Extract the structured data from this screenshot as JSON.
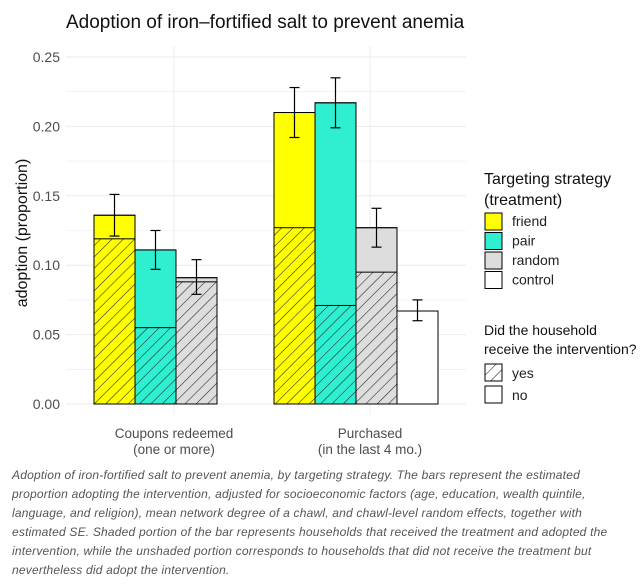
{
  "chart_data": {
    "type": "bar",
    "title": "Adoption of iron–fortified salt to prevent anemia",
    "xlabel": "",
    "ylabel": "adoption (proportion)",
    "ylim": [
      0,
      0.25
    ],
    "yticks": [
      "0.00",
      "0.05",
      "0.10",
      "0.15",
      "0.20",
      "0.25"
    ],
    "categories": [
      "Coupons redeemed\n(one or more)",
      "Purchased\n(in the last 4 mo.)"
    ],
    "grid": true,
    "series": [
      {
        "name": "friend",
        "color": "#ffff00",
        "values": [
          0.136,
          0.21
        ],
        "shaded": [
          0.119,
          0.127
        ],
        "error": [
          [
            0.121,
            0.151
          ],
          [
            0.192,
            0.228
          ]
        ]
      },
      {
        "name": "pair",
        "color": "#2ef0d0",
        "values": [
          0.111,
          0.217
        ],
        "shaded": [
          0.055,
          0.071
        ],
        "error": [
          [
            0.097,
            0.125
          ],
          [
            0.199,
            0.235
          ]
        ]
      },
      {
        "name": "random",
        "color": "#dddddd",
        "values": [
          0.091,
          0.127
        ],
        "shaded": [
          0.088,
          0.095
        ],
        "error": [
          [
            0.079,
            0.104
          ],
          [
            0.113,
            0.141
          ]
        ]
      },
      {
        "name": "control",
        "color": "#ffffff",
        "values": [
          null,
          0.067
        ],
        "shaded": [
          null,
          0
        ],
        "error": [
          null,
          [
            0.06,
            0.075
          ]
        ]
      }
    ],
    "legend": {
      "position": "right",
      "strategy_title": [
        "Targeting strategy",
        "(treatment)"
      ],
      "intervention_title": [
        "Did the household",
        "receive the intervention?"
      ],
      "intervention_items": [
        "yes",
        "no"
      ]
    }
  },
  "caption": "Adoption of iron-fortified salt to prevent anemia, by targeting strategy. The bars represent the estimated proportion adopting the intervention, adjusted for socioeconomic factors (age, education, wealth quintile, language, and religion), mean network degree of a chawl, and chawl-level random effects, together with estimated SE. Shaded portion of the bar represents households that received the treatment and adopted the intervention, while the unshaded portion corresponds to households that did not receive the treatment but nevertheless did adopt the intervention.",
  "colors": {
    "grid": "#ebebeb",
    "axis_text": "#4d4d4d",
    "hatch": "#222222"
  }
}
